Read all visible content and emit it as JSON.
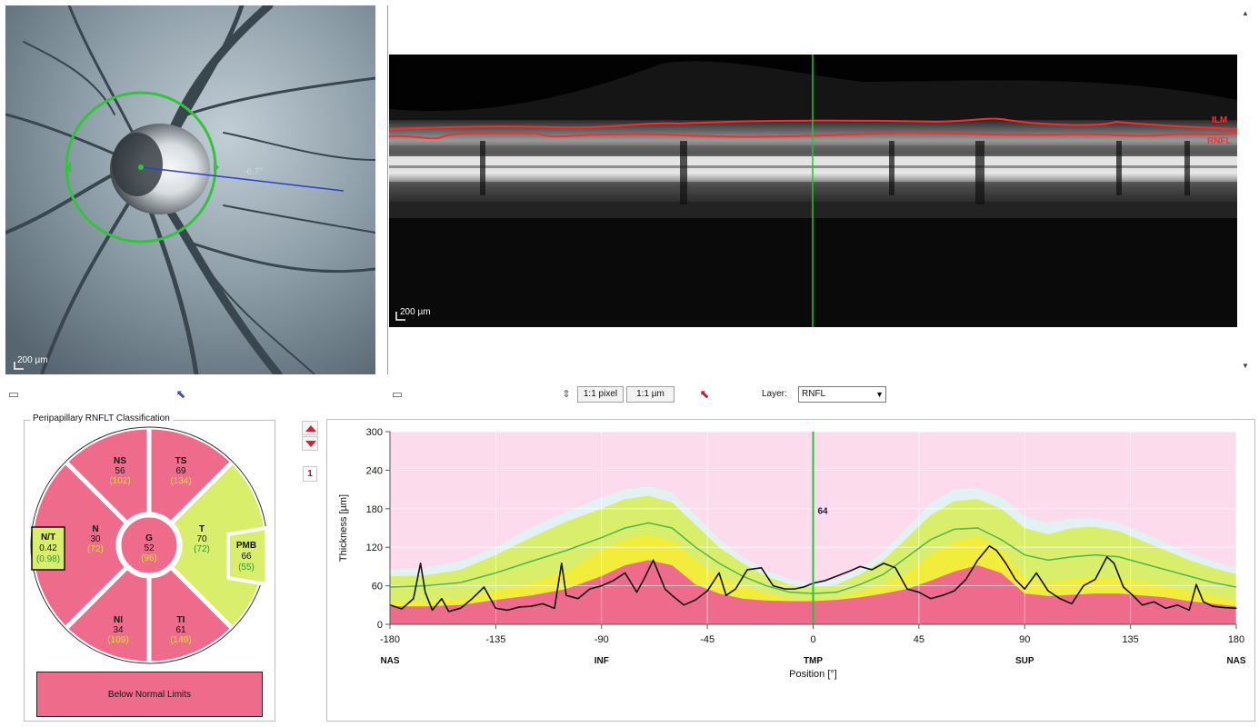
{
  "fundus": {
    "scale_label": "200 µm",
    "angle_label": "-6.7°",
    "colors": {
      "circle": "#2ec73a",
      "line": "#2a3fd0"
    }
  },
  "oct": {
    "scale_label": "200 µm",
    "layer_labels": [
      "ILM",
      "RNFL"
    ],
    "colors": {
      "segmentation": "#ff2a2a",
      "cursor": "#22c43a"
    }
  },
  "toolbar": {
    "pixel_button": "1:1 pixel",
    "micron_button": "1:1 µm",
    "layer_label": "Layer:",
    "layer_value": "RNFL",
    "page_number": "1"
  },
  "classification": {
    "title": "Peripapillary RNFLT Classification",
    "sectors": [
      {
        "id": "NS",
        "name": "NS",
        "value": "56",
        "ref": "(102)",
        "status": "below"
      },
      {
        "id": "TS",
        "name": "TS",
        "value": "69",
        "ref": "(134)",
        "status": "below"
      },
      {
        "id": "N",
        "name": "N",
        "value": "30",
        "ref": "(72)",
        "status": "below"
      },
      {
        "id": "G",
        "name": "G",
        "value": "52",
        "ref": "(96)",
        "status": "below"
      },
      {
        "id": "T",
        "name": "T",
        "value": "70",
        "ref": "(72)",
        "status": "normal"
      },
      {
        "id": "NI",
        "name": "NI",
        "value": "34",
        "ref": "(109)",
        "status": "below"
      },
      {
        "id": "TI",
        "name": "TI",
        "value": "61",
        "ref": "(149)",
        "status": "below"
      }
    ],
    "nt": {
      "name": "N/T",
      "value": "0.42",
      "ref": "(0.98)"
    },
    "pmb": {
      "name": "PMB",
      "value": "66",
      "ref": "(55)"
    },
    "legend_label": "Below Normal Limits",
    "colors": {
      "below": "#ef6b8c",
      "borderline": "#f2ec3a",
      "normal": "#d9ee6a",
      "value_ref": "#e8e03a",
      "ref_normal": "#2f9a3a"
    }
  },
  "chart_data": {
    "type": "area",
    "xlabel": "Position [°]",
    "ylabel": "Thickness [µm]",
    "xlim": [
      -180,
      180
    ],
    "ylim": [
      0,
      300
    ],
    "x_ticks": [
      -180,
      -135,
      -90,
      -45,
      0,
      45,
      90,
      135,
      180
    ],
    "y_ticks": [
      0,
      60,
      120,
      180,
      240,
      300
    ],
    "region_labels": [
      {
        "x": -180,
        "label": "NAS"
      },
      {
        "x": -90,
        "label": "INF"
      },
      {
        "x": 0,
        "label": "TMP"
      },
      {
        "x": 90,
        "label": "SUP"
      },
      {
        "x": 180,
        "label": "NAS"
      }
    ],
    "cursor": {
      "x": 0,
      "label": "64"
    },
    "x": [
      -180,
      -165,
      -150,
      -135,
      -120,
      -105,
      -90,
      -80,
      -70,
      -60,
      -50,
      -40,
      -30,
      -20,
      -10,
      0,
      10,
      20,
      30,
      40,
      50,
      60,
      70,
      80,
      90,
      100,
      110,
      120,
      130,
      140,
      150,
      160,
      170,
      180
    ],
    "bands": {
      "below_normal_upper": [
        28,
        28,
        30,
        38,
        45,
        55,
        75,
        92,
        100,
        92,
        62,
        48,
        40,
        37,
        36,
        36,
        38,
        42,
        48,
        55,
        68,
        82,
        92,
        80,
        48,
        44,
        46,
        48,
        48,
        45,
        42,
        36,
        32,
        28
      ],
      "borderline_upper": [
        35,
        36,
        40,
        52,
        65,
        82,
        115,
        132,
        140,
        130,
        100,
        75,
        60,
        48,
        40,
        38,
        40,
        50,
        62,
        80,
        108,
        128,
        138,
        118,
        72,
        66,
        70,
        74,
        72,
        67,
        62,
        52,
        44,
        38
      ],
      "normal_upper": [
        75,
        76,
        85,
        108,
        135,
        160,
        180,
        195,
        200,
        190,
        155,
        120,
        95,
        75,
        62,
        58,
        62,
        78,
        100,
        135,
        170,
        192,
        195,
        180,
        150,
        140,
        150,
        152,
        145,
        130,
        115,
        100,
        88,
        78
      ],
      "outside_upper": [
        85,
        88,
        98,
        120,
        150,
        175,
        198,
        210,
        215,
        205,
        170,
        133,
        105,
        84,
        70,
        65,
        70,
        88,
        112,
        150,
        188,
        210,
        212,
        198,
        168,
        158,
        165,
        165,
        158,
        143,
        127,
        111,
        98,
        88
      ],
      "mean": [
        58,
        60,
        65,
        80,
        98,
        115,
        135,
        150,
        158,
        150,
        120,
        95,
        75,
        60,
        50,
        48,
        50,
        62,
        78,
        105,
        132,
        148,
        150,
        132,
        108,
        100,
        105,
        108,
        105,
        95,
        85,
        75,
        65,
        58
      ]
    },
    "series": [
      {
        "name": "",
        "x": [
          -180,
          -175,
          -170,
          -167,
          -165,
          -162,
          -158,
          -155,
          -150,
          -145,
          -140,
          -135,
          -130,
          -125,
          -120,
          -115,
          -110,
          -107,
          -105,
          -100,
          -95,
          -90,
          -85,
          -80,
          -75,
          -72,
          -68,
          -63,
          -60,
          -55,
          -50,
          -45,
          -40,
          -37,
          -33,
          -28,
          -22,
          -17,
          -12,
          -8,
          -4,
          0,
          5,
          10,
          15,
          20,
          25,
          30,
          35,
          40,
          45,
          50,
          55,
          60,
          65,
          70,
          75,
          78,
          82,
          86,
          90,
          95,
          100,
          105,
          110,
          115,
          120,
          125,
          128,
          132,
          136,
          140,
          145,
          150,
          155,
          160,
          163,
          166,
          170,
          175,
          180
        ],
        "values": [
          30,
          24,
          40,
          95,
          50,
          22,
          40,
          20,
          25,
          40,
          58,
          25,
          22,
          27,
          28,
          32,
          25,
          95,
          45,
          40,
          55,
          60,
          68,
          80,
          50,
          70,
          100,
          55,
          45,
          30,
          38,
          52,
          80,
          45,
          55,
          85,
          88,
          60,
          55,
          55,
          58,
          64,
          68,
          75,
          82,
          90,
          85,
          95,
          88,
          55,
          50,
          40,
          45,
          52,
          70,
          100,
          122,
          115,
          95,
          70,
          55,
          80,
          52,
          40,
          32,
          60,
          70,
          105,
          95,
          58,
          45,
          30,
          35,
          25,
          30,
          22,
          62,
          35,
          28,
          26,
          25
        ]
      }
    ],
    "colors": {
      "outside": "#e2f1f3",
      "normal": "#d9ee6a",
      "borderline": "#f2ec3a",
      "below": "#ef6b8c",
      "background": "#fcdcec",
      "mean": "#4fb64a",
      "patient": "#111111",
      "cursor": "#22c43a"
    }
  }
}
